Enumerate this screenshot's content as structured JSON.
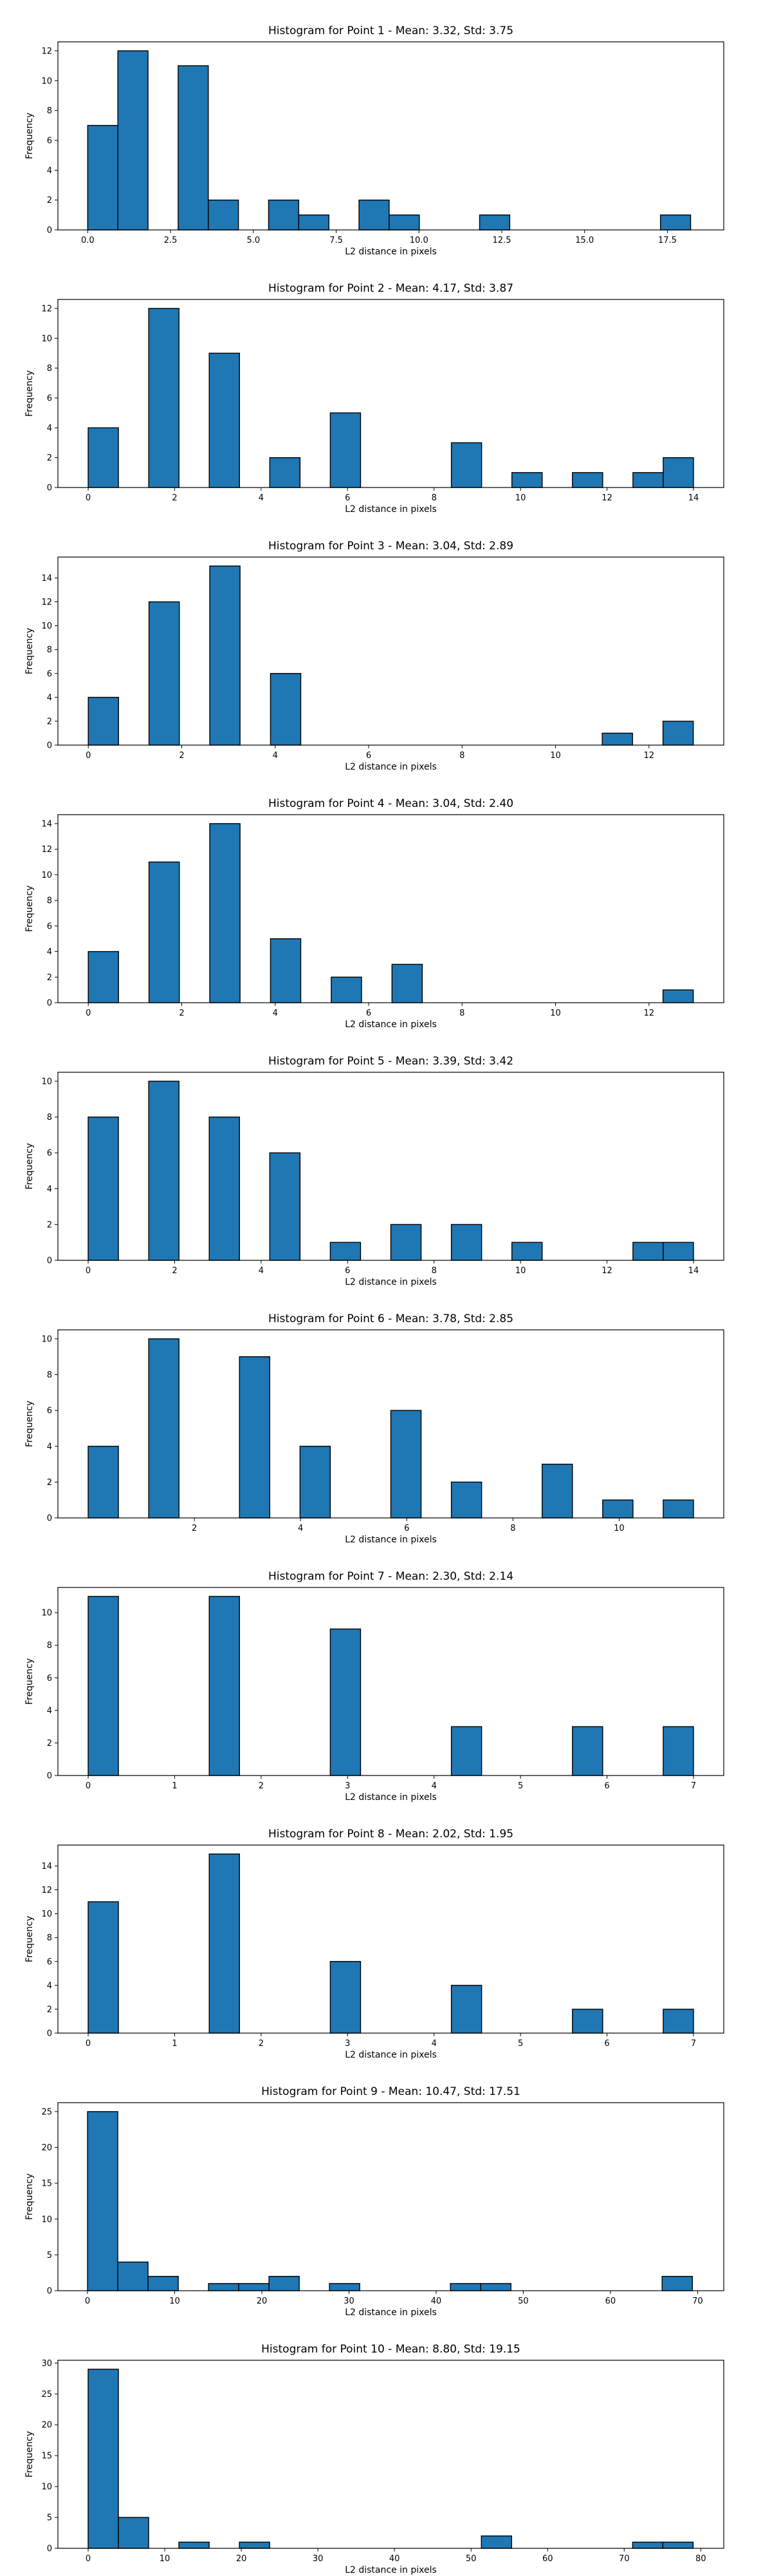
{
  "chart_data": [
    {
      "type": "bar",
      "title": "Histogram for Point 1 - Mean: 3.32, Std: 3.75",
      "xlabel": "L2 distance in pixels",
      "ylabel": "Frequency",
      "xlim": [
        -0.9,
        19.2
      ],
      "ylim": [
        0,
        12.6
      ],
      "xticks": [
        0,
        2.5,
        5,
        7.5,
        10,
        12.5,
        15,
        17.5
      ],
      "xtick_labels": [
        "0.0",
        "2.5",
        "5.0",
        "7.5",
        "10.0",
        "12.5",
        "15.0",
        "17.5"
      ],
      "yticks": [
        0,
        2,
        4,
        6,
        8,
        10,
        12
      ],
      "bin_width": 0.91,
      "bins": [
        {
          "x": 0.0,
          "count": 7
        },
        {
          "x": 0.91,
          "count": 12
        },
        {
          "x": 2.73,
          "count": 11
        },
        {
          "x": 3.64,
          "count": 2
        },
        {
          "x": 5.46,
          "count": 2
        },
        {
          "x": 6.37,
          "count": 1
        },
        {
          "x": 8.19,
          "count": 2
        },
        {
          "x": 9.1,
          "count": 1
        },
        {
          "x": 11.83,
          "count": 1
        },
        {
          "x": 17.29,
          "count": 1
        }
      ],
      "color": "#1f77b4"
    },
    {
      "type": "bar",
      "title": "Histogram for Point 2 - Mean: 4.17, Std: 3.87",
      "xlabel": "L2 distance in pixels",
      "ylabel": "Frequency",
      "xlim": [
        -0.7,
        14.7
      ],
      "ylim": [
        0,
        12.6
      ],
      "xticks": [
        0,
        2,
        4,
        6,
        8,
        10,
        12,
        14
      ],
      "xtick_labels": [
        "0",
        "2",
        "4",
        "6",
        "8",
        "10",
        "12",
        "14"
      ],
      "yticks": [
        0,
        2,
        4,
        6,
        8,
        10,
        12
      ],
      "bin_width": 0.7,
      "bins": [
        {
          "x": 0.0,
          "count": 4
        },
        {
          "x": 1.4,
          "count": 12
        },
        {
          "x": 2.8,
          "count": 9
        },
        {
          "x": 4.2,
          "count": 2
        },
        {
          "x": 5.6,
          "count": 5
        },
        {
          "x": 8.4,
          "count": 3
        },
        {
          "x": 9.8,
          "count": 1
        },
        {
          "x": 11.2,
          "count": 1
        },
        {
          "x": 12.6,
          "count": 1
        },
        {
          "x": 13.3,
          "count": 2
        }
      ],
      "color": "#1f77b4"
    },
    {
      "type": "bar",
      "title": "Histogram for Point 3 - Mean: 3.04, Std: 2.89",
      "xlabel": "L2 distance in pixels",
      "ylabel": "Frequency",
      "xlim": [
        -0.65,
        13.6
      ],
      "ylim": [
        0,
        15.75
      ],
      "xticks": [
        0,
        2,
        4,
        6,
        8,
        10,
        12
      ],
      "xtick_labels": [
        "0",
        "2",
        "4",
        "6",
        "8",
        "10",
        "12"
      ],
      "yticks": [
        0,
        2,
        4,
        6,
        8,
        10,
        12,
        14
      ],
      "bin_width": 0.648,
      "bins": [
        {
          "x": 0.0,
          "count": 4
        },
        {
          "x": 1.3,
          "count": 12
        },
        {
          "x": 2.6,
          "count": 15
        },
        {
          "x": 3.9,
          "count": 6
        },
        {
          "x": 11.0,
          "count": 1
        },
        {
          "x": 12.3,
          "count": 2
        }
      ],
      "color": "#1f77b4"
    },
    {
      "type": "bar",
      "title": "Histogram for Point 4 - Mean: 3.04, Std: 2.40",
      "xlabel": "L2 distance in pixels",
      "ylabel": "Frequency",
      "xlim": [
        -0.65,
        13.6
      ],
      "ylim": [
        0,
        14.7
      ],
      "xticks": [
        0,
        2,
        4,
        6,
        8,
        10,
        12
      ],
      "xtick_labels": [
        "0",
        "2",
        "4",
        "6",
        "8",
        "10",
        "12"
      ],
      "yticks": [
        0,
        2,
        4,
        6,
        8,
        10,
        12,
        14
      ],
      "bin_width": 0.648,
      "bins": [
        {
          "x": 0.0,
          "count": 4
        },
        {
          "x": 1.3,
          "count": 11
        },
        {
          "x": 2.6,
          "count": 14
        },
        {
          "x": 3.9,
          "count": 5
        },
        {
          "x": 5.2,
          "count": 2
        },
        {
          "x": 6.5,
          "count": 3
        },
        {
          "x": 12.3,
          "count": 1
        }
      ],
      "color": "#1f77b4"
    },
    {
      "type": "bar",
      "title": "Histogram for Point 5 - Mean: 3.39, Std: 3.42",
      "xlabel": "L2 distance in pixels",
      "ylabel": "Frequency",
      "xlim": [
        -0.7,
        14.7
      ],
      "ylim": [
        0,
        10.5
      ],
      "xticks": [
        0,
        2,
        4,
        6,
        8,
        10,
        12,
        14
      ],
      "xtick_labels": [
        "0",
        "2",
        "4",
        "6",
        "8",
        "10",
        "12",
        "14"
      ],
      "yticks": [
        0,
        2,
        4,
        6,
        8,
        10
      ],
      "bin_width": 0.7,
      "bins": [
        {
          "x": 0.0,
          "count": 8
        },
        {
          "x": 1.4,
          "count": 10
        },
        {
          "x": 2.8,
          "count": 8
        },
        {
          "x": 4.2,
          "count": 6
        },
        {
          "x": 5.6,
          "count": 1
        },
        {
          "x": 7.0,
          "count": 2
        },
        {
          "x": 8.4,
          "count": 2
        },
        {
          "x": 9.8,
          "count": 1
        },
        {
          "x": 12.6,
          "count": 1
        },
        {
          "x": 13.3,
          "count": 1
        }
      ],
      "color": "#1f77b4"
    },
    {
      "type": "bar",
      "title": "Histogram for Point 6 - Mean: 3.78, Std: 2.85",
      "xlabel": "L2 distance in pixels",
      "ylabel": "Frequency",
      "xlim": [
        -0.57,
        11.97
      ],
      "ylim": [
        0,
        10.5
      ],
      "xticks": [
        2,
        4,
        6,
        8,
        10
      ],
      "xtick_labels": [
        "2",
        "4",
        "6",
        "8",
        "10"
      ],
      "yticks": [
        0,
        2,
        4,
        6,
        8,
        10
      ],
      "bin_width": 0.57,
      "bins": [
        {
          "x": 0.0,
          "count": 4
        },
        {
          "x": 1.14,
          "count": 10
        },
        {
          "x": 2.85,
          "count": 9
        },
        {
          "x": 3.99,
          "count": 4
        },
        {
          "x": 5.7,
          "count": 6
        },
        {
          "x": 6.84,
          "count": 2
        },
        {
          "x": 8.55,
          "count": 3
        },
        {
          "x": 9.69,
          "count": 1
        },
        {
          "x": 10.83,
          "count": 1
        }
      ],
      "color": "#1f77b4"
    },
    {
      "type": "bar",
      "title": "Histogram for Point 7 - Mean: 2.30, Std: 2.14",
      "xlabel": "L2 distance in pixels",
      "ylabel": "Frequency",
      "xlim": [
        -0.35,
        7.35
      ],
      "ylim": [
        0,
        11.55
      ],
      "xticks": [
        0,
        1,
        2,
        3,
        4,
        5,
        6,
        7
      ],
      "xtick_labels": [
        "0",
        "1",
        "2",
        "3",
        "4",
        "5",
        "6",
        "7"
      ],
      "yticks": [
        0,
        2,
        4,
        6,
        8,
        10
      ],
      "bin_width": 0.35,
      "bins": [
        {
          "x": 0.0,
          "count": 11
        },
        {
          "x": 1.4,
          "count": 11
        },
        {
          "x": 2.8,
          "count": 9
        },
        {
          "x": 4.2,
          "count": 3
        },
        {
          "x": 5.6,
          "count": 3
        },
        {
          "x": 6.65,
          "count": 3
        }
      ],
      "color": "#1f77b4"
    },
    {
      "type": "bar",
      "title": "Histogram for Point 8 - Mean: 2.02, Std: 1.95",
      "xlabel": "L2 distance in pixels",
      "ylabel": "Frequency",
      "xlim": [
        -0.35,
        7.35
      ],
      "ylim": [
        0,
        15.75
      ],
      "xticks": [
        0,
        1,
        2,
        3,
        4,
        5,
        6,
        7
      ],
      "xtick_labels": [
        "0",
        "1",
        "2",
        "3",
        "4",
        "5",
        "6",
        "7"
      ],
      "yticks": [
        0,
        2,
        4,
        6,
        8,
        10,
        12,
        14
      ],
      "bin_width": 0.35,
      "bins": [
        {
          "x": 0.0,
          "count": 11
        },
        {
          "x": 1.4,
          "count": 15
        },
        {
          "x": 2.8,
          "count": 6
        },
        {
          "x": 4.2,
          "count": 4
        },
        {
          "x": 5.6,
          "count": 2
        },
        {
          "x": 6.65,
          "count": 2
        }
      ],
      "color": "#1f77b4"
    },
    {
      "type": "bar",
      "title": "Histogram for Point 9 - Mean: 10.47, Std: 17.51",
      "xlabel": "L2 distance in pixels",
      "ylabel": "Frequency",
      "xlim": [
        -3.4,
        73.0
      ],
      "ylim": [
        0,
        26.25
      ],
      "xticks": [
        0,
        10,
        20,
        30,
        40,
        50,
        60,
        70
      ],
      "xtick_labels": [
        "0",
        "10",
        "20",
        "30",
        "40",
        "50",
        "60",
        "70"
      ],
      "yticks": [
        0,
        5,
        10,
        15,
        20,
        25
      ],
      "bin_width": 3.47,
      "bins": [
        {
          "x": 0.0,
          "count": 25
        },
        {
          "x": 3.47,
          "count": 4
        },
        {
          "x": 6.94,
          "count": 2
        },
        {
          "x": 13.88,
          "count": 1
        },
        {
          "x": 17.35,
          "count": 1
        },
        {
          "x": 20.82,
          "count": 2
        },
        {
          "x": 27.76,
          "count": 1
        },
        {
          "x": 41.64,
          "count": 1
        },
        {
          "x": 45.11,
          "count": 1
        },
        {
          "x": 65.93,
          "count": 2
        }
      ],
      "color": "#1f77b4"
    },
    {
      "type": "bar",
      "title": "Histogram for Point 10 - Mean: 8.80, Std: 19.15",
      "xlabel": "L2 distance in pixels",
      "ylabel": "Frequency",
      "xlim": [
        -3.95,
        83.0
      ],
      "ylim": [
        0,
        30.45
      ],
      "xticks": [
        0,
        10,
        20,
        30,
        40,
        50,
        60,
        70,
        80
      ],
      "xtick_labels": [
        "0",
        "10",
        "20",
        "30",
        "40",
        "50",
        "60",
        "70",
        "80"
      ],
      "yticks": [
        0,
        5,
        10,
        15,
        20,
        25,
        30
      ],
      "bin_width": 3.95,
      "bins": [
        {
          "x": 0.0,
          "count": 29
        },
        {
          "x": 3.95,
          "count": 5
        },
        {
          "x": 11.85,
          "count": 1
        },
        {
          "x": 19.75,
          "count": 1
        },
        {
          "x": 51.35,
          "count": 2
        },
        {
          "x": 71.1,
          "count": 1
        },
        {
          "x": 75.05,
          "count": 1
        }
      ],
      "color": "#1f77b4"
    }
  ]
}
